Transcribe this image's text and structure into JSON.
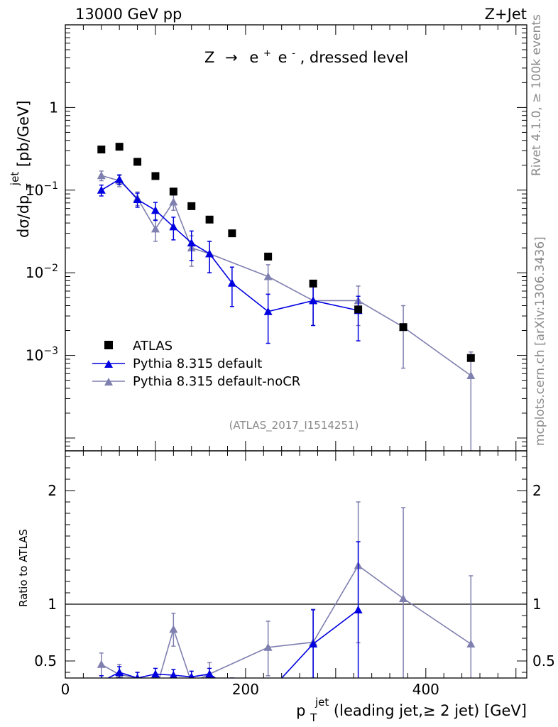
{
  "header": {
    "left": "13000 GeV pp",
    "right": "Z+Jet"
  },
  "side_labels": {
    "rivet": "Rivet 4.1.0, ≥ 100k events",
    "mcplots": "mcplots.cern.ch [arXiv:1306.3436]"
  },
  "colors": {
    "atlas": "#000000",
    "default": "#0000e0",
    "nocr": "#7f7fb0"
  },
  "chart_data": [
    {
      "type": "line",
      "panel": "main",
      "title": "Z → e⁺ e⁻, dressed level",
      "title_parts": {
        "z": "Z",
        "arrow": "→",
        "e1": "e",
        "sup1": "+",
        "e2": "e",
        "sup2": "-",
        "rest": ", dressed level"
      },
      "ylabel": "dσ/dp_T^jet [pb/GeV]",
      "ylabel_parts": {
        "a": "dσ/dp",
        "sub": "T",
        "sup": "jet",
        "b": " [pb/GeV]"
      },
      "yscale": "log",
      "ylim": [
        7e-05,
        10
      ],
      "xlim": [
        0,
        512
      ],
      "y_ticks": [
        {
          "value": 1,
          "label": "1"
        },
        {
          "value": 0.1,
          "base": "10",
          "exp": "−1"
        },
        {
          "value": 0.01,
          "base": "10",
          "exp": "−2"
        },
        {
          "value": 0.001,
          "base": "10",
          "exp": "−3"
        }
      ],
      "analysis_tag": "(ATLAS_2017_I1514251)",
      "legend": [
        "ATLAS",
        "Pythia 8.315 default",
        "Pythia 8.315 default-noCR"
      ],
      "legend_position": "bottom-left",
      "series": [
        {
          "name": "ATLAS",
          "style": "square",
          "x": [
            40,
            60,
            80,
            100,
            120,
            140,
            160,
            185,
            225,
            275,
            325,
            375,
            450
          ],
          "y": [
            0.31,
            0.335,
            0.22,
            0.148,
            0.096,
            0.064,
            0.044,
            0.03,
            0.0157,
            0.0074,
            0.0036,
            0.0022,
            0.00093
          ]
        },
        {
          "name": "Pythia 8.315 default",
          "style": "triangle-line",
          "x": [
            40,
            60,
            80,
            100,
            120,
            140,
            160,
            185,
            225,
            275,
            325
          ],
          "y": [
            0.1,
            0.135,
            0.077,
            0.057,
            0.036,
            0.023,
            0.017,
            0.0075,
            0.0034,
            0.0046,
            0.0035
          ],
          "yerr_lo": [
            0.015,
            0.018,
            0.015,
            0.014,
            0.011,
            0.009,
            0.007,
            0.0036,
            0.002,
            0.0023,
            0.002
          ],
          "yerr_hi": [
            0.015,
            0.018,
            0.015,
            0.014,
            0.011,
            0.009,
            0.007,
            0.0042,
            0.0021,
            0.0023,
            0.0017
          ]
        },
        {
          "name": "Pythia 8.315 default-noCR",
          "style": "triangle-line",
          "x": [
            40,
            60,
            80,
            100,
            120,
            140,
            160,
            225,
            275,
            325,
            375,
            450
          ],
          "y": [
            0.15,
            0.13,
            0.08,
            0.034,
            0.072,
            0.02,
            0.017,
            0.009,
            0.0046,
            0.0046,
            0.0022,
            0.00057
          ],
          "yerr_lo": [
            0.02,
            0.02,
            0.015,
            0.01,
            0.015,
            0.008,
            0.007,
            0.0035,
            0.0023,
            0.0023,
            0.0015,
            0.00057
          ],
          "yerr_hi": [
            0.02,
            0.02,
            0.015,
            0.01,
            0.015,
            0.008,
            0.007,
            0.0035,
            0.0023,
            0.0023,
            0.0018,
            0.00053
          ]
        }
      ]
    },
    {
      "type": "line",
      "panel": "ratio",
      "ylabel": "Ratio to ATLAS",
      "xlabel": "p_T^jet (leading jet,≥ 2 jet) [GeV]",
      "xlabel_parts": {
        "a": "p",
        "sub": "T",
        "sup": "jet",
        "b": " (leading jet,≥ 2 jet) [GeV]"
      },
      "ylim": [
        0.35,
        2.35
      ],
      "xlim": [
        0,
        512
      ],
      "reference_line": 1,
      "y_ticks": [
        {
          "value": 0.5,
          "label": "0.5"
        },
        {
          "value": 1,
          "label": "1"
        },
        {
          "value": 2,
          "label": "2"
        }
      ],
      "x_ticks": [
        {
          "value": 0,
          "label": "0"
        },
        {
          "value": 200,
          "label": "200"
        },
        {
          "value": 400,
          "label": "400"
        }
      ],
      "series": [
        {
          "name": "Pythia 8.315 default",
          "x": [
            40,
            60,
            80,
            100,
            120,
            140,
            160,
            185,
            225,
            275,
            325
          ],
          "y": [
            0.32,
            0.4,
            0.35,
            0.385,
            0.375,
            0.36,
            0.385,
            0.25,
            0.22,
            0.65,
            0.95
          ],
          "yerr_lo": [
            0.05,
            0.05,
            0.05,
            0.05,
            0.05,
            0.05,
            0.05,
            0.1,
            0.1,
            0.3,
            0.95
          ],
          "yerr_hi": [
            0.05,
            0.05,
            0.05,
            0.05,
            0.05,
            0.05,
            0.05,
            0.1,
            0.1,
            0.3,
            0.6
          ]
        },
        {
          "name": "Pythia 8.315 default-noCR",
          "x": [
            40,
            60,
            80,
            100,
            120,
            140,
            160,
            225,
            275,
            325,
            375,
            450
          ],
          "y": [
            0.47,
            0.38,
            0.35,
            0.23,
            0.78,
            0.31,
            0.385,
            0.62,
            0.665,
            1.34,
            1.05,
            0.65
          ],
          "yerr_lo": [
            0.1,
            0.08,
            0.05,
            0.05,
            0.15,
            0.1,
            0.1,
            0.25,
            0.32,
            0.68,
            0.8,
            0.65
          ],
          "yerr_hi": [
            0.1,
            0.09,
            0.05,
            0.05,
            0.14,
            0.1,
            0.1,
            0.23,
            0.29,
            0.56,
            0.8,
            0.6
          ]
        }
      ]
    }
  ]
}
